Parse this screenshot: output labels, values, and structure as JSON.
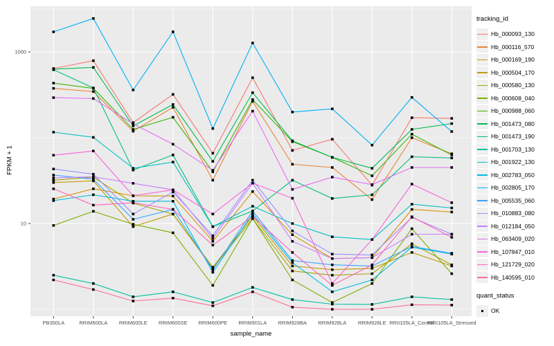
{
  "chart_data": {
    "type": "line",
    "title": "",
    "xlabel": "sample_name",
    "ylabel": "FPKM + 1",
    "y_scale": "log10",
    "y_tick_labels": [
      "1000",
      "10"
    ],
    "y_tick_values": [
      1000,
      10
    ],
    "y_minor_values": [
      3162,
      100,
      1
    ],
    "ylim": [
      0.85,
      3300
    ],
    "grid": true,
    "legend_position": "right",
    "legend_title": "tracking_id",
    "point_legend": {
      "title": "quant_status",
      "items": [
        "OK"
      ]
    },
    "point_color": "#000000",
    "panel_bg": "#ebebeb",
    "grid_color": "#ffffff",
    "tick_label_color": "#4d4d4d",
    "categories": [
      "PB350LA",
      "RRIM600LA",
      "RRIM600LE",
      "RRIM600SE",
      "RRIM600PE",
      "RRIM901LA",
      "RRIM928BA",
      "RRIM928LA",
      "RRIM928LE",
      "RRII105LA_Control",
      "RRII105LA_Stressed"
    ],
    "series": [
      {
        "name": "Hb_000093_130",
        "color": "#F8766D",
        "values": [
          640,
          790,
          150,
          320,
          66,
          500,
          71,
          96,
          28,
          171,
          168
        ]
      },
      {
        "name": "Hb_000116_570",
        "color": "#EA8331",
        "values": [
          376,
          345,
          119,
          226,
          32,
          265,
          49,
          45,
          19,
          100,
          65
        ]
      },
      {
        "name": "Hb_000169_190",
        "color": "#D89000",
        "values": [
          19.3,
          25.4,
          21,
          20.9,
          6.2,
          23.6,
          7.4,
          3.9,
          4,
          14.6,
          13.6
        ]
      },
      {
        "name": "Hb_000504_170",
        "color": "#C09B00",
        "values": [
          30,
          31.4,
          9.2,
          12.9,
          3.1,
          12.2,
          3.2,
          2.9,
          3,
          4.6,
          3.2
        ]
      },
      {
        "name": "Hb_000580_130",
        "color": "#A3A500",
        "values": [
          32,
          34.7,
          17.3,
          12.9,
          3,
          11.4,
          2.8,
          2.5,
          2.6,
          5.8,
          3.3
        ]
      },
      {
        "name": "Hb_000608_040",
        "color": "#7CAE00",
        "values": [
          9.5,
          13.9,
          9.8,
          7.8,
          1.9,
          11.4,
          2.2,
          1.2,
          2,
          8.7,
          2.6
        ]
      },
      {
        "name": "Hb_000988_060",
        "color": "#39B600",
        "values": [
          433,
          376,
          125,
          173,
          40,
          278,
          90,
          59,
          36,
          110,
          63
        ]
      },
      {
        "name": "Hb_001473_080",
        "color": "#00BB4E",
        "values": [
          630,
          660,
          137,
          244,
          53,
          335,
          92,
          59,
          44,
          125,
          146
        ]
      },
      {
        "name": "Hb_001473_190",
        "color": "#00BF7D",
        "values": [
          620,
          380,
          42,
          63,
          9.2,
          14,
          32,
          19.6,
          21.6,
          60,
          58
        ]
      },
      {
        "name": "Hb_001703_130",
        "color": "#00C1A3",
        "values": [
          2.5,
          2,
          1.4,
          1.6,
          1.2,
          1.8,
          1.3,
          1.15,
          1.14,
          1.4,
          1.3
        ]
      },
      {
        "name": "Hb_001922_130",
        "color": "#00BFC4",
        "values": [
          116,
          101,
          44,
          52,
          9.2,
          15.9,
          10,
          7,
          6.5,
          16.8,
          15.2
        ]
      },
      {
        "name": "Hb_002783_050",
        "color": "#00BAE0",
        "values": [
          18.5,
          21.6,
          18.2,
          18.2,
          2.7,
          13,
          3.5,
          1.6,
          2.2,
          5.3,
          4.4
        ]
      },
      {
        "name": "Hb_002805_170",
        "color": "#00B0F6",
        "values": [
          1713,
          2453,
          360,
          1713,
          128,
          1270,
          199,
          217,
          82,
          295,
          118
        ]
      },
      {
        "name": "Hb_005535_060",
        "color": "#35A2FF",
        "values": [
          36.7,
          32.9,
          11.2,
          14.6,
          2.9,
          14,
          3.7,
          3.3,
          3.2,
          5.4,
          4.5
        ]
      },
      {
        "name": "Hb_010883_080",
        "color": "#9590FF",
        "values": [
          43.2,
          37.6,
          12.9,
          23.3,
          7.2,
          32,
          8.2,
          4.4,
          4.3,
          11.8,
          7.5
        ]
      },
      {
        "name": "Hb_012184_050",
        "color": "#C77CFF",
        "values": [
          34,
          35,
          29.4,
          24.7,
          6.7,
          29.5,
          6.2,
          3.9,
          4,
          7.5,
          7.5
        ]
      },
      {
        "name": "Hb_063409_020",
        "color": "#E76BF3",
        "values": [
          293,
          286,
          145,
          84,
          41.7,
          204,
          25,
          34.7,
          28.4,
          45,
          45
        ]
      },
      {
        "name": "Hb_107847_010",
        "color": "#FA62DB",
        "values": [
          62.5,
          70,
          21.1,
          24.7,
          12.9,
          29.5,
          19.7,
          2,
          6.5,
          28.8,
          17.5
        ]
      },
      {
        "name": "Hb_121729_020",
        "color": "#FF62BC",
        "values": [
          25.4,
          16.4,
          17.5,
          14.6,
          5.6,
          12.1,
          4.6,
          1.9,
          3.3,
          12,
          6.9
        ]
      },
      {
        "name": "Hb_140595_010",
        "color": "#FF6A98",
        "values": [
          2.2,
          1.7,
          1.25,
          1.35,
          1.1,
          1.6,
          1.06,
          1,
          1,
          1.13,
          1.12
        ]
      }
    ]
  }
}
